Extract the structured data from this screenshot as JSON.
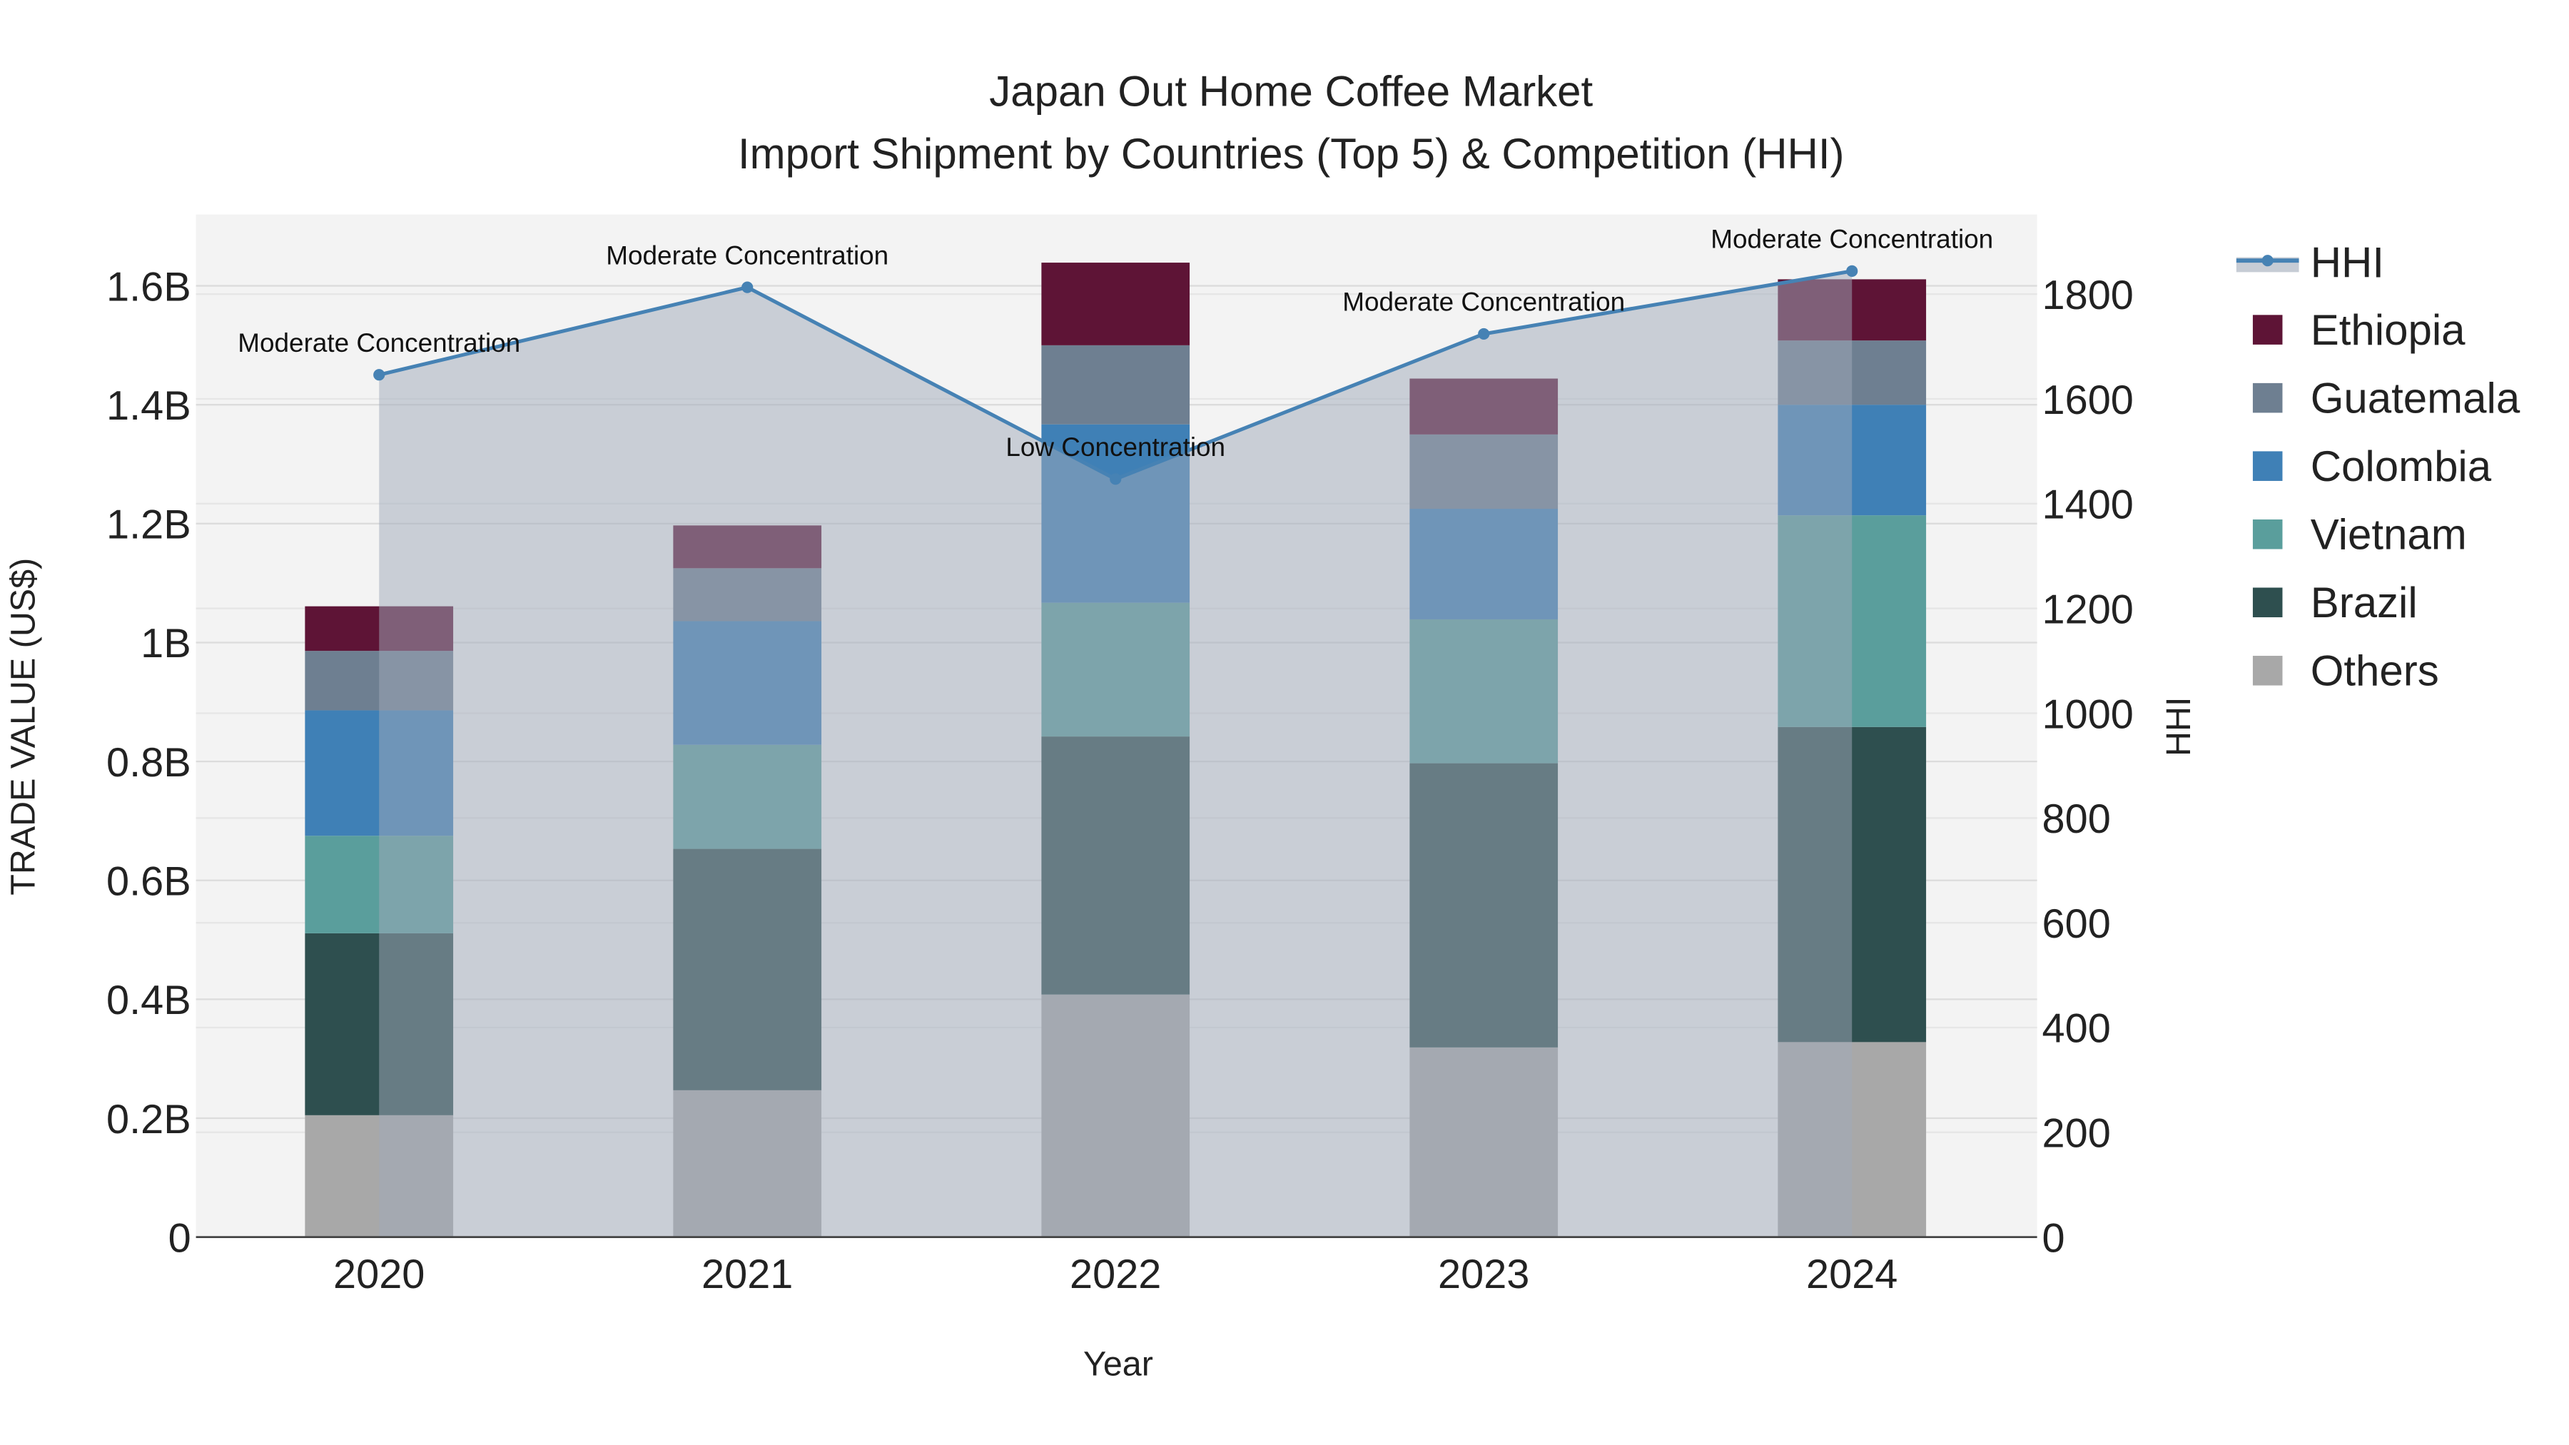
{
  "chart_data": {
    "type": "bar",
    "stacked": true,
    "title": "Japan Out Home Coffee Market",
    "subtitle": "Import Shipment by Countries (Top 5) & Competition (HHI)",
    "xlabel": "Year",
    "ylabel": "TRADE VALUE (US$)",
    "y2label": "HHI",
    "categories": [
      "2020",
      "2021",
      "2022",
      "2023",
      "2024"
    ],
    "ylim": [
      0,
      1.72
    ],
    "y_unit": "B",
    "y_ticks": [
      0,
      0.2,
      0.4,
      0.6,
      0.8,
      1,
      1.2,
      1.4,
      1.6
    ],
    "y_tick_labels": [
      "0",
      "0.2B",
      "0.4B",
      "0.6B",
      "0.8B",
      "1B",
      "1.2B",
      "1.4B",
      "1.6B"
    ],
    "y2lim": [
      0,
      1952
    ],
    "y2_ticks": [
      0,
      200,
      400,
      600,
      800,
      1000,
      1200,
      1400,
      1600,
      1800
    ],
    "y2_tick_labels": [
      "0",
      "200",
      "400",
      "600",
      "800",
      "1000",
      "1200",
      "1400",
      "1600",
      "1800"
    ],
    "grid": true,
    "legend_position": "right",
    "series": [
      {
        "name": "Others",
        "color": "#a8a8a8",
        "values": [
          0.205,
          0.247,
          0.408,
          0.319,
          0.328
        ]
      },
      {
        "name": "Brazil",
        "color": "#2e4f4f",
        "values": [
          0.306,
          0.406,
          0.434,
          0.478,
          0.53
        ]
      },
      {
        "name": "Vietnam",
        "color": "#5a9e9c",
        "values": [
          0.164,
          0.175,
          0.225,
          0.242,
          0.356
        ]
      },
      {
        "name": "Colombia",
        "color": "#3f80b6",
        "values": [
          0.211,
          0.208,
          0.3,
          0.186,
          0.186
        ]
      },
      {
        "name": "Guatemala",
        "color": "#6e7f91",
        "values": [
          0.1,
          0.089,
          0.133,
          0.125,
          0.108
        ]
      },
      {
        "name": "Ethiopia",
        "color": "#5e1436",
        "values": [
          0.075,
          0.072,
          0.139,
          0.094,
          0.103
        ]
      }
    ],
    "hhi": {
      "name": "HHI",
      "color": "#4682b4",
      "values": [
        1646,
        1813,
        1447,
        1724,
        1844
      ],
      "annotations": [
        "Moderate Concentration",
        "Moderate Concentration",
        "Low Concentration",
        "Moderate Concentration",
        "Moderate Concentration"
      ]
    },
    "legend": [
      "HHI",
      "Ethiopia",
      "Guatemala",
      "Colombia",
      "Vietnam",
      "Brazil",
      "Others"
    ]
  }
}
